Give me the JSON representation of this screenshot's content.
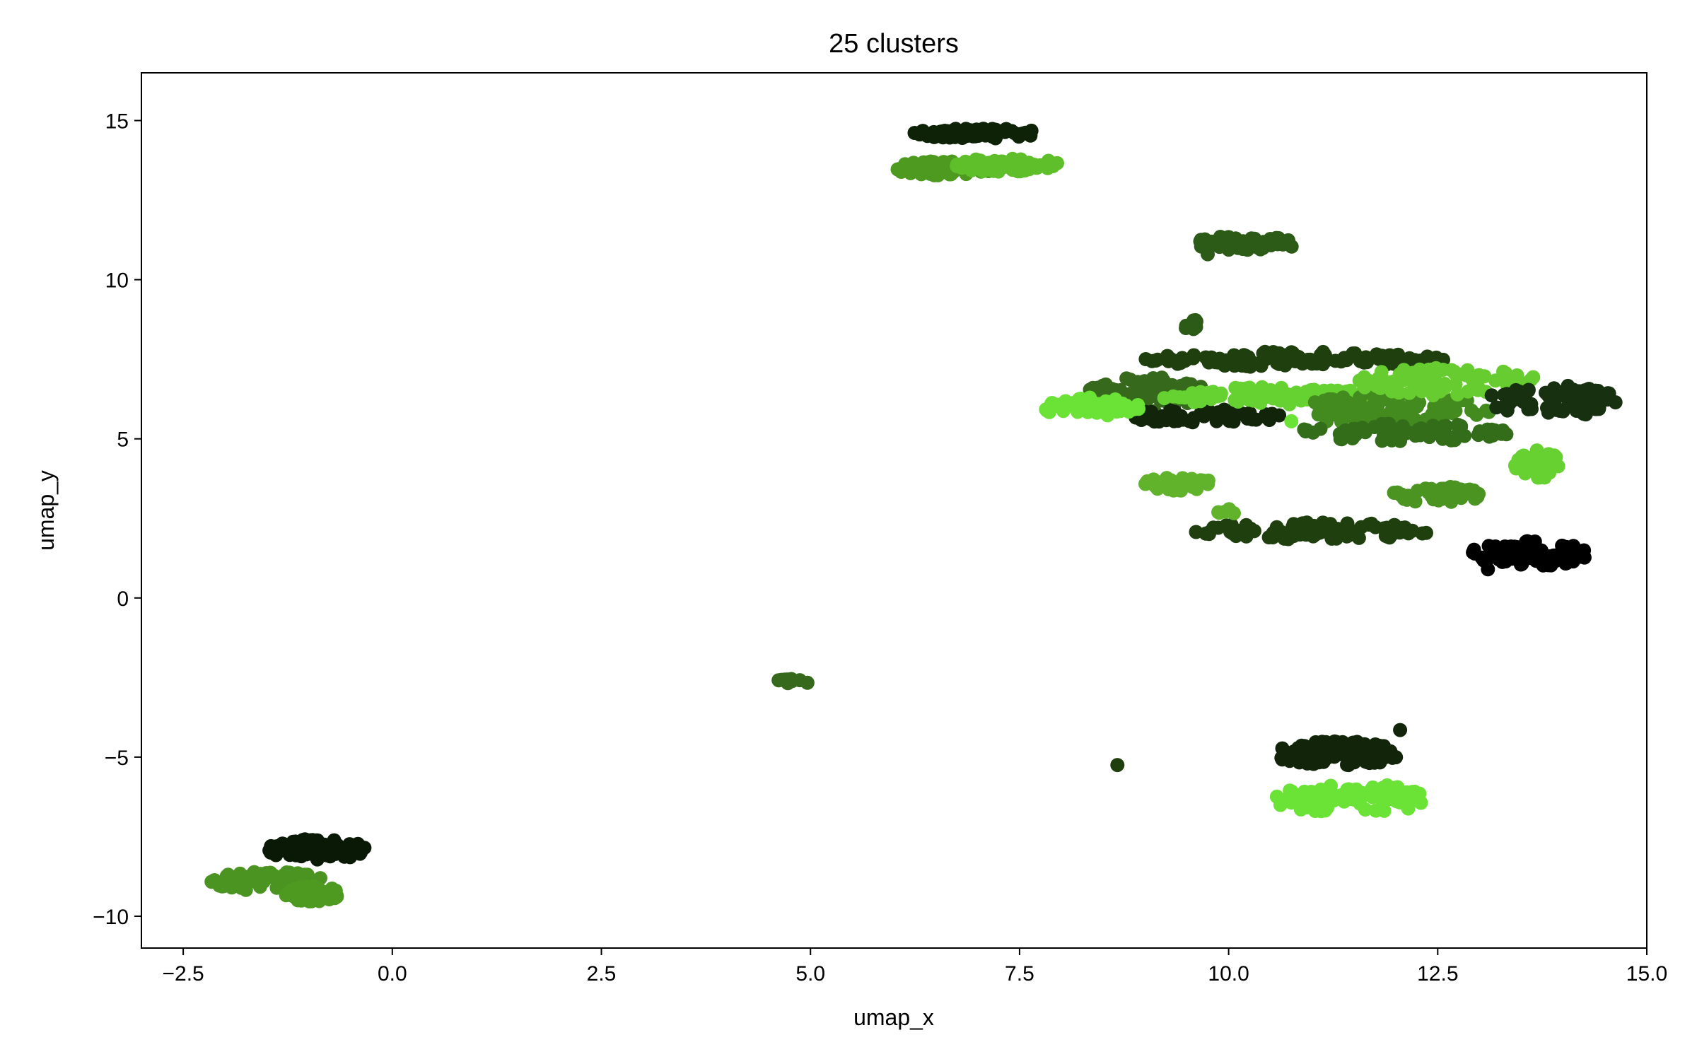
{
  "chart_data": {
    "type": "scatter",
    "title": "25 clusters",
    "xlabel": "umap_x",
    "ylabel": "umap_y",
    "xlim": [
      -3.0,
      15.0
    ],
    "ylim": [
      -11.0,
      16.5
    ],
    "x_ticks": [
      -2.5,
      0.0,
      2.5,
      5.0,
      7.5,
      10.0,
      12.5,
      15.0
    ],
    "x_tick_labels": [
      "−2.5",
      "0.0",
      "2.5",
      "5.0",
      "7.5",
      "10.0",
      "12.5",
      "15.0"
    ],
    "y_ticks": [
      -10,
      -5,
      0,
      5,
      10,
      15
    ],
    "y_tick_labels": [
      "−10",
      "−5",
      "0",
      "5",
      "10",
      "15"
    ],
    "grid": false,
    "legend": "none",
    "clusters": [
      {
        "color": "#0e2208",
        "cx": 7.0,
        "cy": 14.6,
        "sx": 1.55,
        "sy": 0.32,
        "n": 70
      },
      {
        "color": "#4e9a20",
        "cx": 6.6,
        "cy": 13.5,
        "sx": 1.2,
        "sy": 0.45,
        "n": 70
      },
      {
        "color": "#5ebf2a",
        "cx": 7.35,
        "cy": 13.6,
        "sx": 1.25,
        "sy": 0.45,
        "n": 70
      },
      {
        "color": "#2c5a17",
        "cx": 10.2,
        "cy": 11.15,
        "sx": 1.3,
        "sy": 0.45,
        "n": 55
      },
      {
        "color": "#2c5a17",
        "cx": 9.55,
        "cy": 8.6,
        "sx": 0.2,
        "sy": 0.35,
        "n": 8
      },
      {
        "color": "#1f3f0f",
        "cx": 10.8,
        "cy": 7.5,
        "sx": 3.6,
        "sy": 0.5,
        "n": 110
      },
      {
        "color": "#36691b",
        "cx": 9.0,
        "cy": 6.4,
        "sx": 1.6,
        "sy": 1.1,
        "n": 85
      },
      {
        "color": "#12250a",
        "cx": 9.7,
        "cy": 5.7,
        "sx": 2.0,
        "sy": 0.45,
        "n": 55
      },
      {
        "color": "#6be236",
        "cx": 8.35,
        "cy": 6.0,
        "sx": 1.2,
        "sy": 0.6,
        "n": 55
      },
      {
        "color": "#66d231",
        "cx": 10.6,
        "cy": 6.35,
        "sx": 3.0,
        "sy": 0.55,
        "n": 90
      },
      {
        "color": "#438a1f",
        "cx": 12.0,
        "cy": 5.9,
        "sx": 2.4,
        "sy": 1.0,
        "n": 110
      },
      {
        "color": "#336d1a",
        "cx": 12.1,
        "cy": 5.2,
        "sx": 2.6,
        "sy": 0.55,
        "n": 80
      },
      {
        "color": "#66cc30",
        "cx": 12.6,
        "cy": 6.8,
        "sx": 2.2,
        "sy": 0.9,
        "n": 90
      },
      {
        "color": "#173010",
        "cx": 13.9,
        "cy": 6.2,
        "sx": 1.6,
        "sy": 1.0,
        "n": 70
      },
      {
        "color": "#66d131",
        "cx": 13.7,
        "cy": 4.2,
        "sx": 0.55,
        "sy": 0.9,
        "n": 30
      },
      {
        "color": "#61b32c",
        "cx": 9.4,
        "cy": 3.6,
        "sx": 0.8,
        "sy": 0.45,
        "n": 35
      },
      {
        "color": "#4b9422",
        "cx": 12.5,
        "cy": 3.25,
        "sx": 1.1,
        "sy": 0.5,
        "n": 40
      },
      {
        "color": "#1f3f0f",
        "cx": 11.0,
        "cy": 2.1,
        "sx": 2.8,
        "sy": 0.55,
        "n": 80
      },
      {
        "color": "#61b32c",
        "cx": 10.0,
        "cy": 2.7,
        "sx": 0.25,
        "sy": 0.25,
        "n": 5
      },
      {
        "color": "#000000",
        "cx": 13.6,
        "cy": 1.4,
        "sx": 1.4,
        "sy": 0.85,
        "n": 90
      },
      {
        "color": "#36691b",
        "cx": 4.8,
        "cy": -2.6,
        "sx": 0.45,
        "sy": 0.2,
        "n": 10
      },
      {
        "color": "#12250a",
        "cx": 11.3,
        "cy": -4.9,
        "sx": 1.5,
        "sy": 0.8,
        "n": 85
      },
      {
        "color": "#6be236",
        "cx": 11.5,
        "cy": -6.3,
        "sx": 2.0,
        "sy": 0.9,
        "n": 80
      },
      {
        "color": "#0a1806",
        "cx": -0.9,
        "cy": -7.9,
        "sx": 1.2,
        "sy": 0.65,
        "n": 75
      },
      {
        "color": "#4b9422",
        "cx": -1.5,
        "cy": -8.9,
        "sx": 1.4,
        "sy": 0.6,
        "n": 60
      },
      {
        "color": "#4e9a20",
        "cx": -0.95,
        "cy": -9.3,
        "sx": 0.65,
        "sy": 0.5,
        "n": 50
      }
    ],
    "outliers": [
      {
        "x": 8.67,
        "y": -5.25,
        "color": "#1f3f0f"
      },
      {
        "x": 12.05,
        "y": -4.15,
        "color": "#12250a"
      },
      {
        "x": 9.75,
        "y": 10.8,
        "color": "#2c5a17"
      },
      {
        "x": 10.75,
        "y": 5.55,
        "color": "#6be236"
      },
      {
        "x": 13.1,
        "y": 0.9,
        "color": "#000000"
      }
    ]
  }
}
